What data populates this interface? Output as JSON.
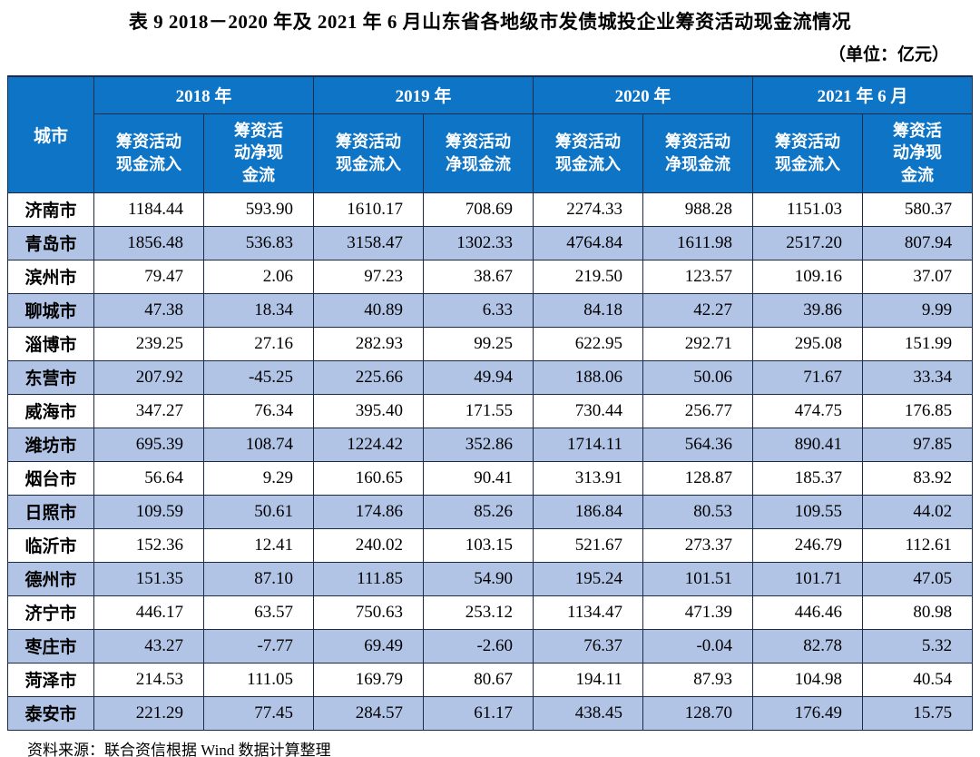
{
  "page": {
    "title": "表 9   2018－2020 年及 2021 年 6 月山东省各地级市发债城投企业筹资活动现金流情况",
    "unit": "（单位：亿元）",
    "source": "资料来源：联合资信根据 Wind 数据计算整理"
  },
  "table": {
    "city_header": "城市",
    "years": [
      "2018 年",
      "2019 年",
      "2020 年",
      "2021 年 6 月"
    ],
    "sub_headers": [
      "筹资活动\n现金流入",
      "筹资活\n动净现\n金流",
      "筹资活动\n现金流入",
      "筹资活动\n净现金流",
      "筹资活动\n现金流入",
      "筹资活动\n净现金流",
      "筹资活动\n现金流入",
      "筹资活\n动净现\n金流"
    ],
    "rows": [
      [
        "济南市",
        "1184.44",
        "593.90",
        "1610.17",
        "708.69",
        "2274.33",
        "988.28",
        "1151.03",
        "580.37"
      ],
      [
        "青岛市",
        "1856.48",
        "536.83",
        "3158.47",
        "1302.33",
        "4764.84",
        "1611.98",
        "2517.20",
        "807.94"
      ],
      [
        "滨州市",
        "79.47",
        "2.06",
        "97.23",
        "38.67",
        "219.50",
        "123.57",
        "109.16",
        "37.07"
      ],
      [
        "聊城市",
        "47.38",
        "18.34",
        "40.89",
        "6.33",
        "84.18",
        "42.27",
        "39.86",
        "9.99"
      ],
      [
        "淄博市",
        "239.25",
        "27.16",
        "282.93",
        "99.25",
        "622.95",
        "292.71",
        "295.08",
        "151.99"
      ],
      [
        "东营市",
        "207.92",
        "-45.25",
        "225.66",
        "49.94",
        "188.06",
        "50.06",
        "71.67",
        "33.34"
      ],
      [
        "威海市",
        "347.27",
        "76.34",
        "395.40",
        "171.55",
        "730.44",
        "256.77",
        "474.75",
        "176.85"
      ],
      [
        "潍坊市",
        "695.39",
        "108.74",
        "1224.42",
        "352.86",
        "1714.11",
        "564.36",
        "890.41",
        "97.85"
      ],
      [
        "烟台市",
        "56.64",
        "9.29",
        "160.65",
        "90.41",
        "313.91",
        "128.87",
        "185.37",
        "83.92"
      ],
      [
        "日照市",
        "109.59",
        "50.61",
        "174.86",
        "85.26",
        "186.84",
        "80.53",
        "109.55",
        "44.02"
      ],
      [
        "临沂市",
        "152.36",
        "12.41",
        "240.02",
        "103.15",
        "521.67",
        "273.37",
        "246.79",
        "112.61"
      ],
      [
        "德州市",
        "151.35",
        "87.10",
        "111.85",
        "54.90",
        "195.24",
        "101.51",
        "101.71",
        "47.05"
      ],
      [
        "济宁市",
        "446.17",
        "63.57",
        "750.63",
        "253.12",
        "1134.47",
        "471.39",
        "446.46",
        "80.98"
      ],
      [
        "枣庄市",
        "43.27",
        "-7.77",
        "69.49",
        "-2.60",
        "76.37",
        "-0.04",
        "82.78",
        "5.32"
      ],
      [
        "菏泽市",
        "214.53",
        "111.05",
        "169.79",
        "80.67",
        "194.11",
        "87.93",
        "104.98",
        "40.54"
      ],
      [
        "泰安市",
        "221.29",
        "77.45",
        "284.57",
        "61.17",
        "438.45",
        "128.70",
        "176.49",
        "15.75"
      ]
    ]
  },
  "colors": {
    "header_bg": "#0e74c6",
    "stripe_bg": "#b1c4e6",
    "border": "#1c2b4a",
    "header_text": "#ffffff"
  }
}
